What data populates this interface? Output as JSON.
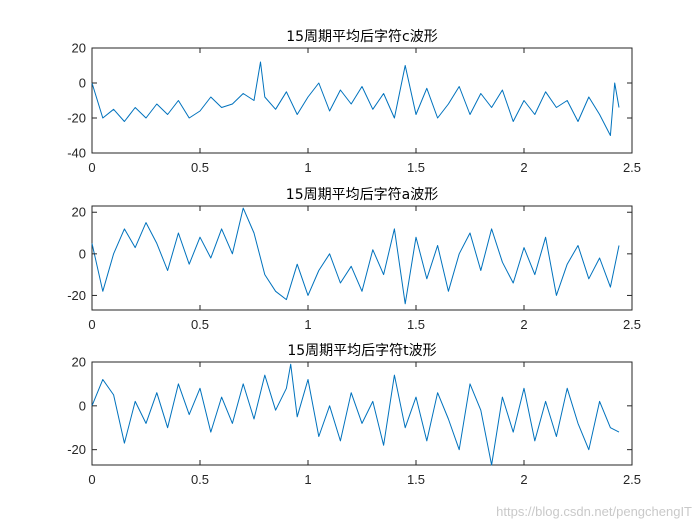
{
  "watermark": "https://blog.csdn.net/pengchengIT",
  "colors": {
    "line": "#0072BD",
    "axes": "#262626",
    "background": "#ffffff"
  },
  "chart_data": [
    {
      "type": "line",
      "title": "15周期平均后字符c波形",
      "xlim": [
        0,
        2.5
      ],
      "ylim": [
        -40,
        20
      ],
      "xticks": [
        0,
        0.5,
        1,
        1.5,
        2,
        2.5
      ],
      "yticks": [
        -40,
        -20,
        0,
        20
      ],
      "xtick_labels": [
        "0",
        "0.5",
        "1",
        "1.5",
        "2",
        "2.5"
      ],
      "ytick_labels": [
        "-40",
        "-20",
        "0",
        "20"
      ],
      "grid": false,
      "x": [
        0,
        0.05,
        0.1,
        0.15,
        0.2,
        0.25,
        0.3,
        0.35,
        0.4,
        0.45,
        0.5,
        0.55,
        0.6,
        0.65,
        0.7,
        0.75,
        0.78,
        0.8,
        0.85,
        0.9,
        0.95,
        1.0,
        1.05,
        1.1,
        1.15,
        1.2,
        1.25,
        1.3,
        1.35,
        1.4,
        1.45,
        1.5,
        1.55,
        1.6,
        1.65,
        1.7,
        1.75,
        1.8,
        1.85,
        1.9,
        1.95,
        2.0,
        2.05,
        2.1,
        2.15,
        2.2,
        2.25,
        2.3,
        2.35,
        2.4,
        2.42,
        2.44
      ],
      "series": [
        {
          "values": [
            0,
            -20,
            -15,
            -22,
            -14,
            -20,
            -12,
            -18,
            -10,
            -20,
            -16,
            -8,
            -14,
            -12,
            -6,
            -10,
            12,
            -8,
            -15,
            -5,
            -18,
            -8,
            0,
            -16,
            -4,
            -12,
            -2,
            -15,
            -6,
            -20,
            10,
            -18,
            -3,
            -20,
            -12,
            -2,
            -18,
            -6,
            -14,
            -4,
            -22,
            -10,
            -18,
            -5,
            -14,
            -10,
            -22,
            -8,
            -18,
            -30,
            0,
            -14
          ]
        }
      ]
    },
    {
      "type": "line",
      "title": "15周期平均后字符a波形",
      "xlim": [
        0,
        2.5
      ],
      "ylim": [
        -27,
        23
      ],
      "xticks": [
        0,
        0.5,
        1,
        1.5,
        2,
        2.5
      ],
      "yticks": [
        -20,
        0,
        20
      ],
      "xtick_labels": [
        "0",
        "0.5",
        "1",
        "1.5",
        "2",
        "2.5"
      ],
      "ytick_labels": [
        "-20",
        "0",
        "20"
      ],
      "grid": false,
      "x": [
        0,
        0.05,
        0.1,
        0.15,
        0.2,
        0.25,
        0.3,
        0.35,
        0.4,
        0.45,
        0.5,
        0.55,
        0.6,
        0.65,
        0.7,
        0.75,
        0.8,
        0.85,
        0.9,
        0.95,
        1.0,
        1.05,
        1.1,
        1.15,
        1.2,
        1.25,
        1.3,
        1.35,
        1.4,
        1.45,
        1.5,
        1.55,
        1.6,
        1.65,
        1.7,
        1.75,
        1.8,
        1.85,
        1.9,
        1.95,
        2.0,
        2.05,
        2.1,
        2.15,
        2.2,
        2.25,
        2.3,
        2.35,
        2.4,
        2.44
      ],
      "series": [
        {
          "values": [
            5,
            -18,
            0,
            12,
            3,
            15,
            5,
            -8,
            10,
            -5,
            8,
            -2,
            12,
            0,
            22,
            10,
            -10,
            -18,
            -22,
            -5,
            -20,
            -8,
            0,
            -14,
            -6,
            -18,
            2,
            -10,
            12,
            -24,
            8,
            -12,
            4,
            -18,
            0,
            10,
            -8,
            12,
            -4,
            -14,
            3,
            -10,
            8,
            -20,
            -5,
            4,
            -12,
            -2,
            -16,
            4
          ]
        }
      ]
    },
    {
      "type": "line",
      "title": "15周期平均后字符t波形",
      "xlim": [
        0,
        2.5
      ],
      "ylim": [
        -27,
        20
      ],
      "xticks": [
        0,
        0.5,
        1,
        1.5,
        2,
        2.5
      ],
      "yticks": [
        -20,
        0,
        20
      ],
      "xtick_labels": [
        "0",
        "0.5",
        "1",
        "1.5",
        "2",
        "2.5"
      ],
      "ytick_labels": [
        "-20",
        "0",
        "20"
      ],
      "grid": false,
      "x": [
        0,
        0.05,
        0.1,
        0.15,
        0.2,
        0.25,
        0.3,
        0.35,
        0.4,
        0.45,
        0.5,
        0.55,
        0.6,
        0.65,
        0.7,
        0.75,
        0.8,
        0.85,
        0.9,
        0.92,
        0.95,
        1.0,
        1.05,
        1.1,
        1.15,
        1.2,
        1.25,
        1.3,
        1.35,
        1.4,
        1.45,
        1.5,
        1.55,
        1.6,
        1.65,
        1.7,
        1.75,
        1.8,
        1.85,
        1.9,
        1.95,
        2.0,
        2.05,
        2.1,
        2.15,
        2.2,
        2.25,
        2.3,
        2.35,
        2.4,
        2.44
      ],
      "series": [
        {
          "values": [
            0,
            12,
            5,
            -17,
            2,
            -8,
            6,
            -10,
            10,
            -4,
            8,
            -12,
            4,
            -8,
            10,
            -6,
            14,
            -2,
            8,
            19,
            -5,
            12,
            -14,
            0,
            -16,
            6,
            -8,
            2,
            -18,
            14,
            -10,
            4,
            -16,
            6,
            -6,
            -20,
            10,
            -2,
            -27,
            4,
            -12,
            8,
            -16,
            2,
            -14,
            8,
            -8,
            -20,
            2,
            -10,
            -12
          ]
        }
      ]
    }
  ]
}
